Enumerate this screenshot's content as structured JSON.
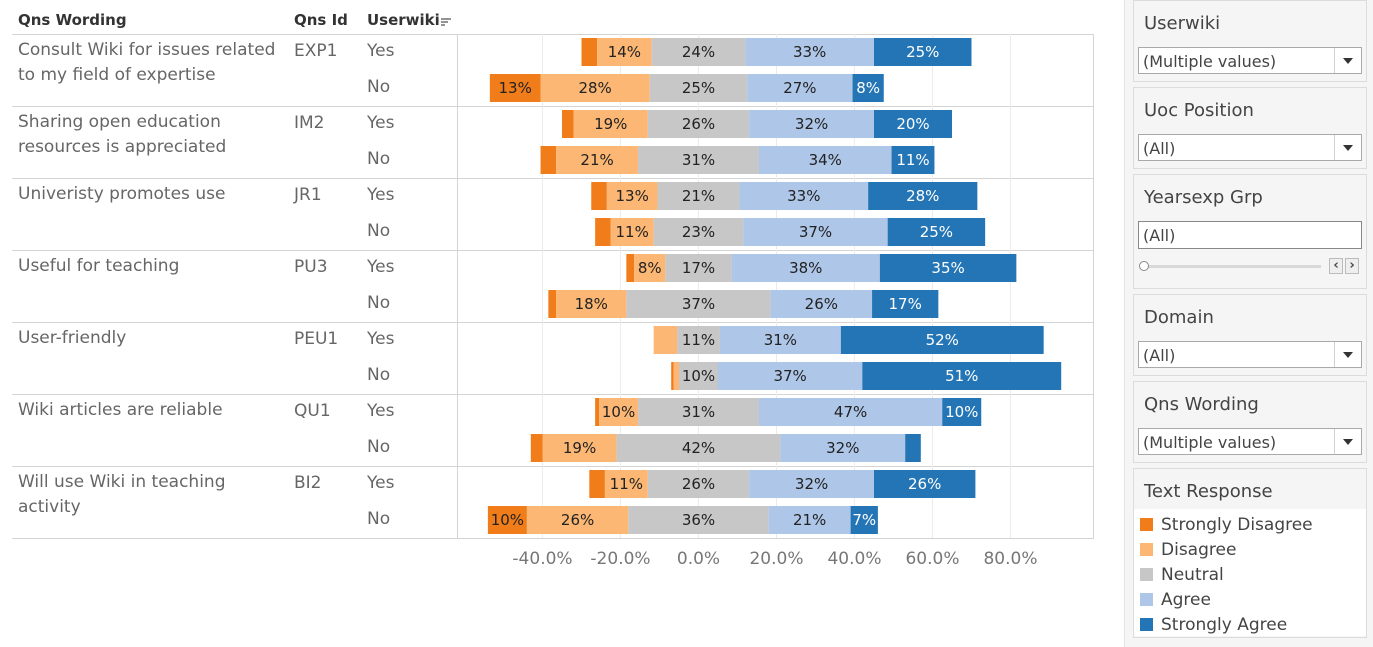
{
  "headers": {
    "qns_wording": "Qns Wording",
    "qns_id": "Qns Id",
    "userwiki": "Userwiki"
  },
  "colors": {
    "strongly_disagree": "#f07d1a",
    "disagree": "#fbb773",
    "neutral": "#c7c7c7",
    "agree": "#aec6e8",
    "strongly_agree": "#2475b5"
  },
  "chart_data": {
    "type": "bar",
    "subtype": "diverging-stacked-horizontal",
    "x_ticks": [
      "-40.0%",
      "-20.0%",
      "0.0%",
      "20.0%",
      "40.0%",
      "60.0%",
      "80.0%"
    ],
    "x_tick_values": [
      -40,
      -20,
      0,
      20,
      40,
      60,
      80
    ],
    "xlim": [
      -57,
      100
    ],
    "segments": [
      "Strongly Disagree",
      "Disagree",
      "Neutral",
      "Agree",
      "Strongly Agree"
    ],
    "groups": [
      {
        "wording": "Consult Wiki for issues related to my field of expertise",
        "id": "EXP1",
        "rows": [
          {
            "userwiki": "Yes",
            "values": [
              4,
              14,
              24,
              33,
              25
            ],
            "labels": [
              "",
              "14%",
              "24%",
              "33%",
              "25%"
            ]
          },
          {
            "userwiki": "No",
            "values": [
              13,
              28,
              25,
              27,
              8
            ],
            "labels": [
              "13%",
              "28%",
              "25%",
              "27%",
              "8%"
            ]
          }
        ]
      },
      {
        "wording": "Sharing open education resources is appreciated",
        "id": "IM2",
        "rows": [
          {
            "userwiki": "Yes",
            "values": [
              3,
              19,
              26,
              32,
              20
            ],
            "labels": [
              "",
              "19%",
              "26%",
              "32%",
              "20%"
            ]
          },
          {
            "userwiki": "No",
            "values": [
              4,
              21,
              31,
              34,
              11
            ],
            "labels": [
              "",
              "21%",
              "31%",
              "34%",
              "11%"
            ]
          }
        ]
      },
      {
        "wording": "Univeristy promotes use",
        "id": "JR1",
        "rows": [
          {
            "userwiki": "Yes",
            "values": [
              4,
              13,
              21,
              33,
              28
            ],
            "labels": [
              "",
              "13%",
              "21%",
              "33%",
              "28%"
            ]
          },
          {
            "userwiki": "No",
            "values": [
              4,
              11,
              23,
              37,
              25
            ],
            "labels": [
              "",
              "11%",
              "23%",
              "37%",
              "25%"
            ]
          }
        ]
      },
      {
        "wording": "Useful for teaching",
        "id": "PU3",
        "rows": [
          {
            "userwiki": "Yes",
            "values": [
              2,
              8,
              17,
              38,
              35
            ],
            "labels": [
              "",
              "8%",
              "17%",
              "38%",
              "35%"
            ]
          },
          {
            "userwiki": "No",
            "values": [
              2,
              18,
              37,
              26,
              17
            ],
            "labels": [
              "",
              "18%",
              "37%",
              "26%",
              "17%"
            ]
          }
        ]
      },
      {
        "wording": "User-friendly",
        "id": "PEU1",
        "rows": [
          {
            "userwiki": "Yes",
            "values": [
              0,
              6,
              11,
              31,
              52
            ],
            "labels": [
              "",
              "",
              "11%",
              "31%",
              "52%"
            ]
          },
          {
            "userwiki": "No",
            "values": [
              0.6,
              1.4,
              10,
              37,
              51
            ],
            "labels": [
              "",
              "",
              "10%",
              "37%",
              "51%"
            ]
          }
        ]
      },
      {
        "wording": "Wiki articles are reliable",
        "id": "QU1",
        "rows": [
          {
            "userwiki": "Yes",
            "values": [
              1,
              10,
              31,
              47,
              10
            ],
            "labels": [
              "",
              "10%",
              "31%",
              "47%",
              "10%"
            ]
          },
          {
            "userwiki": "No",
            "values": [
              3,
              19,
              42,
              32,
              4
            ],
            "labels": [
              "",
              "19%",
              "42%",
              "32%",
              ""
            ]
          }
        ]
      },
      {
        "wording": "Will use Wiki in teaching activity",
        "id": "BI2",
        "rows": [
          {
            "userwiki": "Yes",
            "values": [
              4,
              11,
              26,
              32,
              26
            ],
            "labels": [
              "",
              "11%",
              "26%",
              "32%",
              "26%"
            ]
          },
          {
            "userwiki": "No",
            "values": [
              10,
              26,
              36,
              21,
              7
            ],
            "labels": [
              "10%",
              "26%",
              "36%",
              "21%",
              "7%"
            ]
          }
        ]
      }
    ]
  },
  "filters": [
    {
      "title": "Userwiki",
      "value": "(Multiple values)",
      "kind": "dropdown"
    },
    {
      "title": "Uoc Position",
      "value": "(All)",
      "kind": "dropdown"
    },
    {
      "title": "Yearsexp Grp",
      "value": "(All)",
      "kind": "slider"
    },
    {
      "title": "Domain",
      "value": "(All)",
      "kind": "dropdown"
    },
    {
      "title": "Qns Wording",
      "value": "(Multiple values)",
      "kind": "dropdown"
    }
  ],
  "legend": {
    "title": "Text Response",
    "items": [
      {
        "label": "Strongly Disagree",
        "color": "#f07d1a"
      },
      {
        "label": "Disagree",
        "color": "#fbb773"
      },
      {
        "label": "Neutral",
        "color": "#c7c7c7"
      },
      {
        "label": "Agree",
        "color": "#aec6e8"
      },
      {
        "label": "Strongly Agree",
        "color": "#2475b5"
      }
    ]
  }
}
